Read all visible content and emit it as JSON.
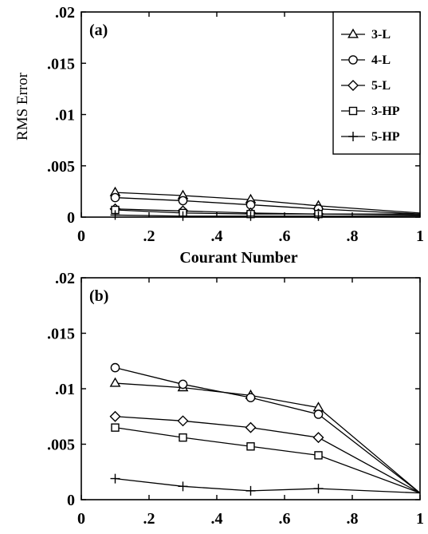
{
  "chart_data": [
    {
      "type": "line",
      "panel_label": "(a)",
      "xlabel": "Courant Number",
      "ylabel": "RMS Error",
      "xlim": [
        0,
        1
      ],
      "ylim": [
        0,
        0.02
      ],
      "xticks": [
        "0",
        ".2",
        ".4",
        ".6",
        ".8",
        "1"
      ],
      "yticks": [
        "0",
        ".005",
        ".01",
        ".015",
        ".02"
      ],
      "grid": false,
      "legend_position": "top-right",
      "x": [
        0.1,
        0.3,
        0.5,
        0.7,
        1.0
      ],
      "series": [
        {
          "name": "3-L",
          "marker": "triangle",
          "values": [
            0.0024,
            0.0021,
            0.0017,
            0.0011,
            0.0004
          ]
        },
        {
          "name": "4-L",
          "marker": "circle",
          "values": [
            0.0019,
            0.0016,
            0.0012,
            0.0008,
            0.0003
          ]
        },
        {
          "name": "5-L",
          "marker": "diamond",
          "values": [
            0.0008,
            0.0006,
            0.0004,
            0.0003,
            0.0002
          ]
        },
        {
          "name": "3-HP",
          "marker": "square",
          "values": [
            0.0007,
            0.0004,
            0.0003,
            0.0003,
            0.0003
          ]
        },
        {
          "name": "5-HP",
          "marker": "plus",
          "values": [
            0.0002,
            0.0001,
            0.0001,
            0.0001,
            0.0001
          ]
        }
      ]
    },
    {
      "type": "line",
      "panel_label": "(b)",
      "xlabel": "Courant Number",
      "ylabel": "",
      "xlim": [
        0,
        1
      ],
      "ylim": [
        0,
        0.02
      ],
      "xticks": [
        "0",
        ".2",
        ".4",
        ".6",
        ".8",
        "1"
      ],
      "yticks": [
        "0",
        ".005",
        ".01",
        ".015",
        ".02"
      ],
      "grid": false,
      "x": [
        0.1,
        0.3,
        0.5,
        0.7,
        1.0
      ],
      "series": [
        {
          "name": "3-L",
          "marker": "triangle",
          "values": [
            0.0105,
            0.0101,
            0.0094,
            0.0083,
            0.0006
          ]
        },
        {
          "name": "4-L",
          "marker": "circle",
          "values": [
            0.0119,
            0.0104,
            0.0092,
            0.0077,
            0.0006
          ]
        },
        {
          "name": "5-L",
          "marker": "diamond",
          "values": [
            0.0075,
            0.0071,
            0.0065,
            0.0056,
            0.0006
          ]
        },
        {
          "name": "3-HP",
          "marker": "square",
          "values": [
            0.0065,
            0.0056,
            0.0048,
            0.004,
            0.0006
          ]
        },
        {
          "name": "5-HP",
          "marker": "plus",
          "values": [
            0.0019,
            0.0012,
            0.0008,
            0.001,
            0.0006
          ]
        }
      ]
    }
  ]
}
